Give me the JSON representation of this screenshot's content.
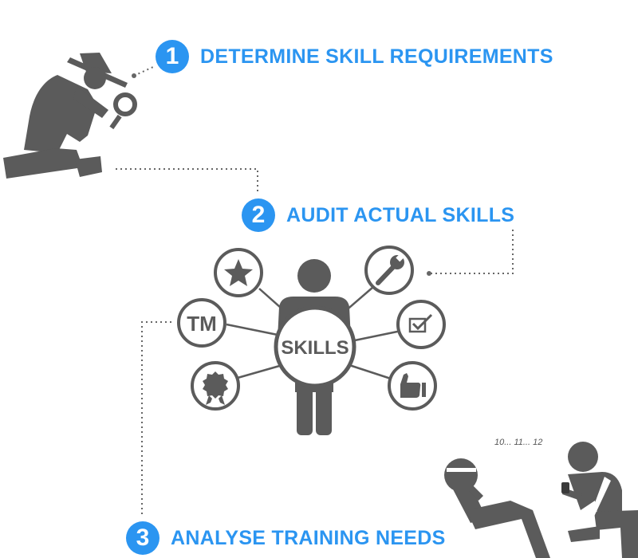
{
  "steps": [
    {
      "number": "1",
      "label": "DETERMINE SKILL REQUIREMENTS"
    },
    {
      "number": "2",
      "label": "AUDIT ACTUAL SKILLS"
    },
    {
      "number": "3",
      "label": "ANALYSE TRAINING NEEDS"
    }
  ],
  "center": {
    "label": "SKILLS"
  },
  "skill_icons": [
    {
      "name": "star-icon"
    },
    {
      "name": "trademark-icon",
      "text": "TM"
    },
    {
      "name": "award-badge-icon"
    },
    {
      "name": "wrench-icon"
    },
    {
      "name": "checkbox-icon"
    },
    {
      "name": "thumbs-up-icon"
    }
  ],
  "counter_text": "10... 11... 12",
  "colors": {
    "accent": "#2b95f1",
    "figure": "#5b5b5b",
    "line": "#666666"
  }
}
